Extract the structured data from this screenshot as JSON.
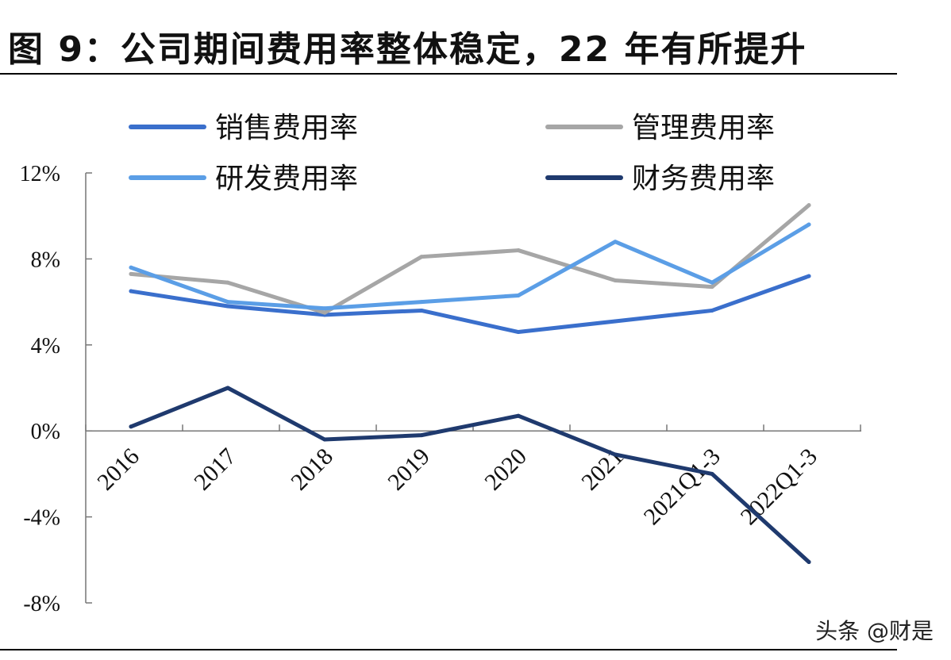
{
  "title": "图 9：公司期间费用率整体稳定，22 年有所提升",
  "watermark": "头条 @财是",
  "chart_data": {
    "type": "line",
    "categories": [
      "2016",
      "2017",
      "2018",
      "2019",
      "2020",
      "2021",
      "2021Q1-3",
      "2022Q1-3"
    ],
    "ylim": [
      -8,
      12
    ],
    "yticks": [
      -8,
      -4,
      0,
      4,
      8,
      12
    ],
    "ytick_labels": [
      "-8%",
      "-4%",
      "0%",
      "4%",
      "8%",
      "12%"
    ],
    "legend_position": "top",
    "grid": false,
    "series": [
      {
        "name": "销售费用率",
        "color": "#3a6fcc",
        "values": [
          6.5,
          5.8,
          5.4,
          5.6,
          4.6,
          5.1,
          5.6,
          7.2
        ]
      },
      {
        "name": "管理费用率",
        "color": "#a6a6a6",
        "values": [
          7.3,
          6.9,
          5.5,
          8.1,
          8.4,
          7.0,
          6.7,
          10.5
        ]
      },
      {
        "name": "研发费用率",
        "color": "#5b9ee6",
        "values": [
          7.6,
          6.0,
          5.7,
          6.0,
          6.3,
          8.8,
          6.9,
          9.6
        ]
      },
      {
        "name": "财务费用率",
        "color": "#1f3a6e",
        "values": [
          0.2,
          2.0,
          -0.4,
          -0.2,
          0.7,
          -1.1,
          -2.0,
          -6.1
        ]
      }
    ]
  }
}
